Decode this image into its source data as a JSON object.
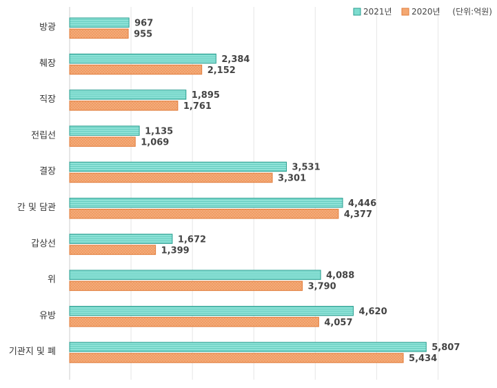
{
  "chart_data": {
    "type": "bar",
    "orientation": "horizontal",
    "categories": [
      "방광",
      "췌장",
      "직장",
      "전립선",
      "결장",
      "간 및 담관",
      "갑상선",
      "위",
      "유방",
      "기관지 및 폐"
    ],
    "series": [
      {
        "name": "2021년",
        "values": [
          967,
          2384,
          1895,
          1135,
          3531,
          4446,
          1672,
          4088,
          4620,
          5807
        ],
        "color": "#7ddccf",
        "stroke": "#2a9d8f"
      },
      {
        "name": "2020년",
        "values": [
          955,
          2152,
          1761,
          1069,
          3301,
          4377,
          1399,
          3790,
          4057,
          5434
        ],
        "color": "#f4a872",
        "stroke": "#e07b39"
      }
    ],
    "value_labels": [
      [
        "967",
        "2,384",
        "1,895",
        "1,135",
        "3,531",
        "4,446",
        "1,672",
        "4,088",
        "4,620",
        "5,807"
      ],
      [
        "955",
        "2,152",
        "1,761",
        "1,069",
        "3,301",
        "4,377",
        "1,399",
        "3,790",
        "4,057",
        "5,434"
      ]
    ],
    "unit": "(단위:억원)",
    "xlim": [
      0,
      6500
    ],
    "grid": true,
    "legend_position": "top-right",
    "title": "",
    "xlabel": "",
    "ylabel": ""
  }
}
